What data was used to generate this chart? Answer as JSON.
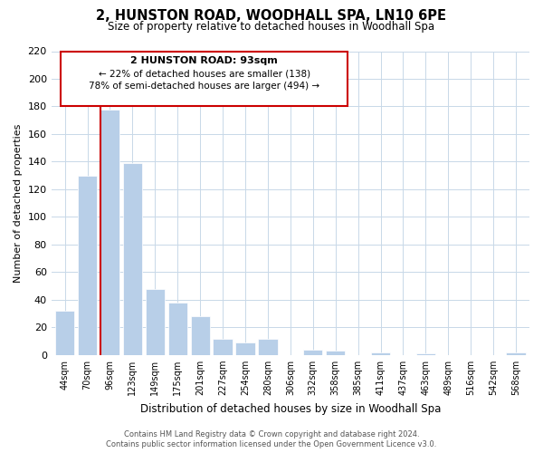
{
  "title": "2, HUNSTON ROAD, WOODHALL SPA, LN10 6PE",
  "subtitle": "Size of property relative to detached houses in Woodhall Spa",
  "xlabel": "Distribution of detached houses by size in Woodhall Spa",
  "ylabel": "Number of detached properties",
  "bar_labels": [
    "44sqm",
    "70sqm",
    "96sqm",
    "123sqm",
    "149sqm",
    "175sqm",
    "201sqm",
    "227sqm",
    "254sqm",
    "280sqm",
    "306sqm",
    "332sqm",
    "358sqm",
    "385sqm",
    "411sqm",
    "437sqm",
    "463sqm",
    "489sqm",
    "516sqm",
    "542sqm",
    "568sqm"
  ],
  "bar_values": [
    32,
    130,
    178,
    139,
    48,
    38,
    28,
    12,
    9,
    12,
    0,
    4,
    3,
    0,
    2,
    0,
    1,
    0,
    0,
    0,
    2
  ],
  "bar_color": "#b8cfe8",
  "highlight_color": "#cc0000",
  "highlight_bar_index": 2,
  "ylim": [
    0,
    220
  ],
  "yticks": [
    0,
    20,
    40,
    60,
    80,
    100,
    120,
    140,
    160,
    180,
    200,
    220
  ],
  "annotation_title": "2 HUNSTON ROAD: 93sqm",
  "annotation_line1": "← 22% of detached houses are smaller (138)",
  "annotation_line2": "78% of semi-detached houses are larger (494) →",
  "footer_line1": "Contains HM Land Registry data © Crown copyright and database right 2024.",
  "footer_line2": "Contains public sector information licensed under the Open Government Licence v3.0.",
  "background_color": "#ffffff",
  "grid_color": "#c8d8e8"
}
